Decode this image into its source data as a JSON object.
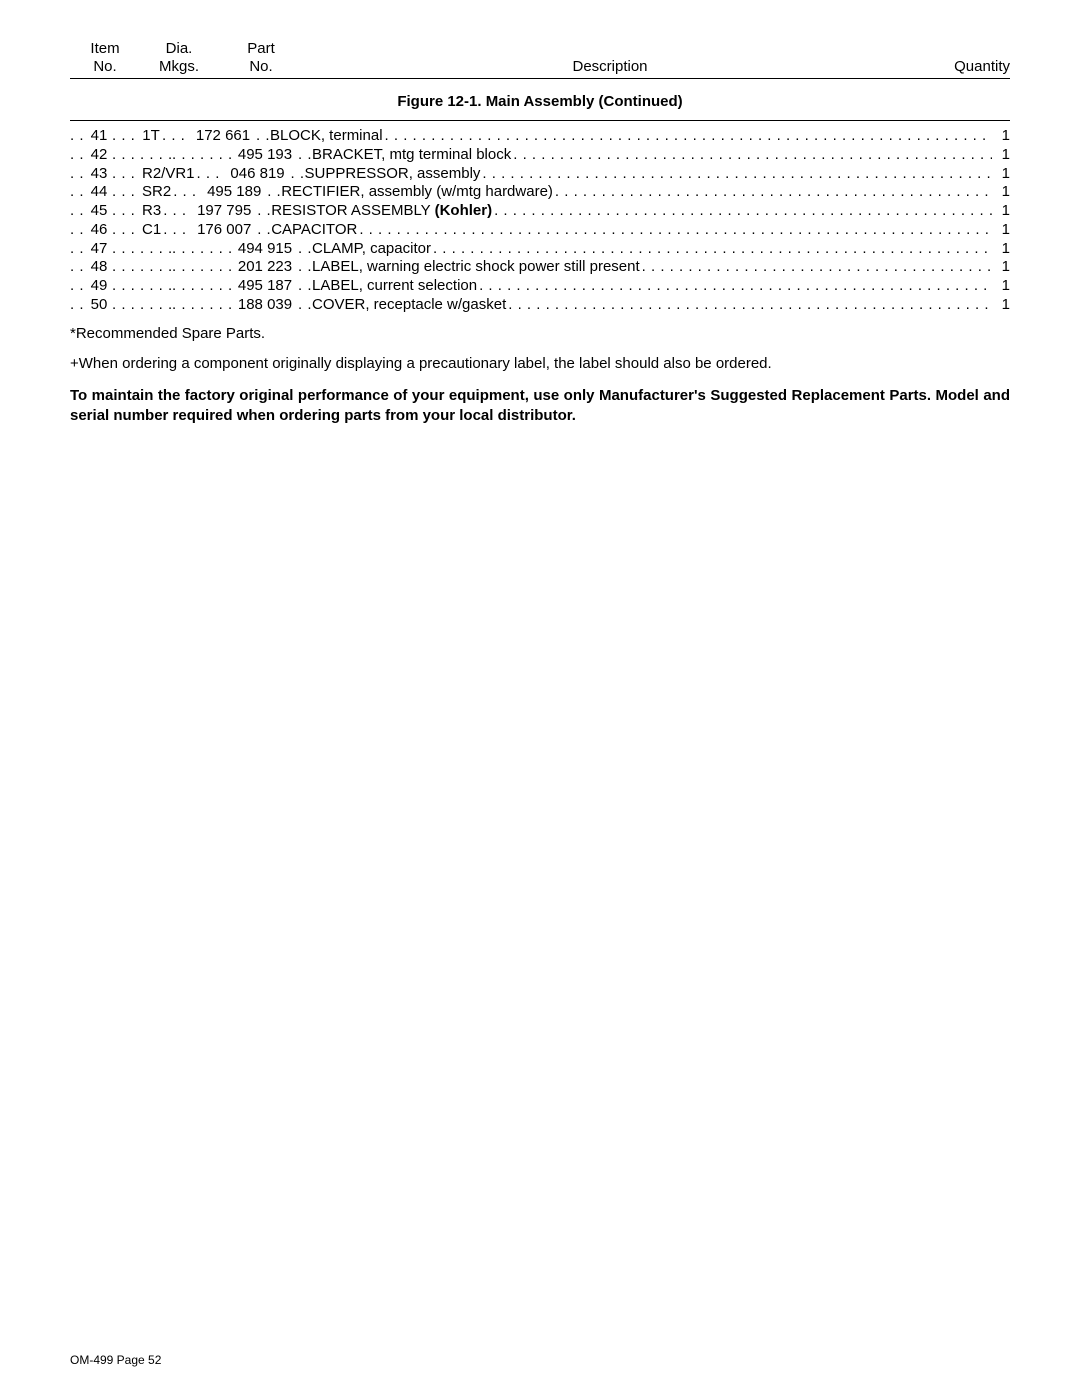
{
  "header": {
    "item_l1": "Item",
    "item_l2": "No.",
    "dia_l1": "Dia.",
    "dia_l2": "Mkgs.",
    "part_l1": "Part",
    "part_l2": "No.",
    "desc": "Description",
    "qty": "Quantity"
  },
  "figure_title": "Figure 12-1. Main Assembly (Continued)",
  "rows": [
    {
      "item": "41",
      "dia": "1T",
      "part": "172 661",
      "desc": "BLOCK, terminal",
      "bold": "",
      "qty": "1"
    },
    {
      "item": "42",
      "dia": "",
      "part": "495 193",
      "desc": "BRACKET, mtg terminal block",
      "bold": "",
      "qty": "1"
    },
    {
      "item": "43",
      "dia": "R2/VR1",
      "part": "046 819",
      "desc": "SUPPRESSOR, assembly",
      "bold": "",
      "qty": "1"
    },
    {
      "item": "44",
      "dia": "SR2",
      "part": "495 189",
      "desc": "RECTIFIER, assembly (w/mtg hardware)",
      "bold": "",
      "qty": "1"
    },
    {
      "item": "45",
      "dia": "R3",
      "part": "197 795",
      "desc": "RESISTOR ASSEMBLY ",
      "bold": "(Kohler)",
      "qty": "1"
    },
    {
      "item": "46",
      "dia": "C1",
      "part": "176 007",
      "desc": "CAPACITOR",
      "bold": "",
      "qty": "1"
    },
    {
      "item": "47",
      "dia": "",
      "part": "494 915",
      "desc": "CLAMP, capacitor",
      "bold": "",
      "qty": "1"
    },
    {
      "item": "48",
      "dia": "",
      "part": "201 223",
      "desc": "LABEL, warning electric shock power still present",
      "bold": "",
      "qty": "1"
    },
    {
      "item": "49",
      "dia": "",
      "part": "495 187",
      "desc": "LABEL, current selection",
      "bold": "",
      "qty": "1"
    },
    {
      "item": "50",
      "dia": "",
      "part": "188 039",
      "desc": "COVER, receptacle w/gasket",
      "bold": "",
      "qty": "1"
    }
  ],
  "note1": "*Recommended Spare Parts.",
  "note2": "+When ordering a component originally displaying a precautionary label, the label should also be ordered.",
  "bold_note": "To maintain the factory original performance of your equipment, use only Manufacturer's Suggested Replacement Parts. Model and serial number required when ordering parts from your local distributor.",
  "footer": "OM-499 Page 52"
}
